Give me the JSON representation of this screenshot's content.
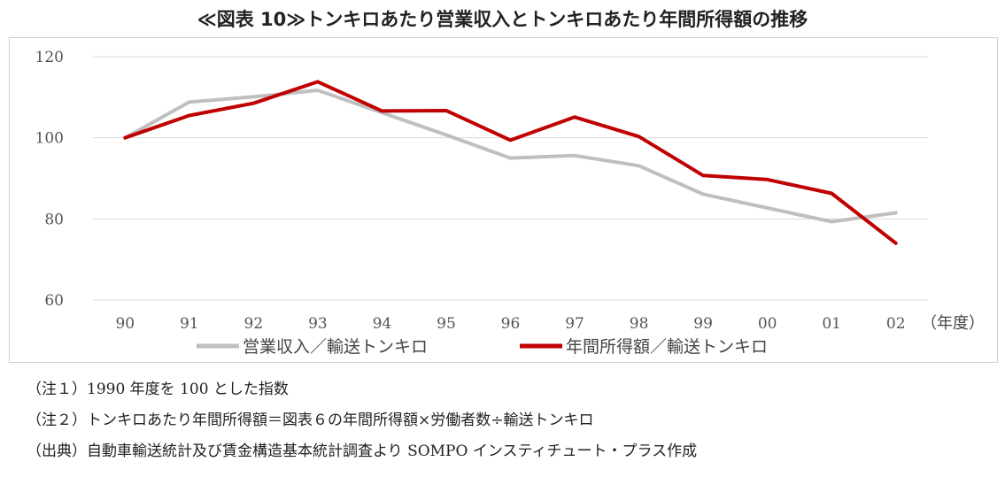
{
  "title": "≪図表 10≫トンキロあたり営業収入とトンキロあたり年間所得額の推移",
  "notes": [
    "（注１）1990 年度を 100 とした指数",
    "（注２）トンキロあたり年間所得額＝図表６の年間所得額×労働者数÷輸送トンキロ",
    "（出典）自動車輸送統計及び賃金構造基本統計調査より SOMPO インスティチュート・プラス作成"
  ],
  "chart_data": {
    "type": "line",
    "title": "≪図表 10≫トンキロあたり営業収入とトンキロあたり年間所得額の推移",
    "xlabel": "（年度）",
    "ylabel": "",
    "categories": [
      "90",
      "91",
      "92",
      "93",
      "94",
      "95",
      "96",
      "97",
      "98",
      "99",
      "00",
      "01",
      "02"
    ],
    "ylim": [
      60,
      120
    ],
    "yticks": [
      60,
      80,
      100,
      120
    ],
    "grid": true,
    "legend_position": "bottom",
    "series": [
      {
        "name": "営業収入／輸送トンキロ",
        "color": "#bfbfbf",
        "values": [
          100,
          108.8,
          110.1,
          111.7,
          106.2,
          100.7,
          95.0,
          95.6,
          93.1,
          86.1,
          82.7,
          79.3,
          81.5
        ]
      },
      {
        "name": "年間所得額／輸送トンキロ",
        "color": "#c00000",
        "values": [
          100,
          105.5,
          108.5,
          113.8,
          106.6,
          106.7,
          99.4,
          105.1,
          100.3,
          90.7,
          89.7,
          86.3,
          74.0
        ]
      }
    ]
  }
}
